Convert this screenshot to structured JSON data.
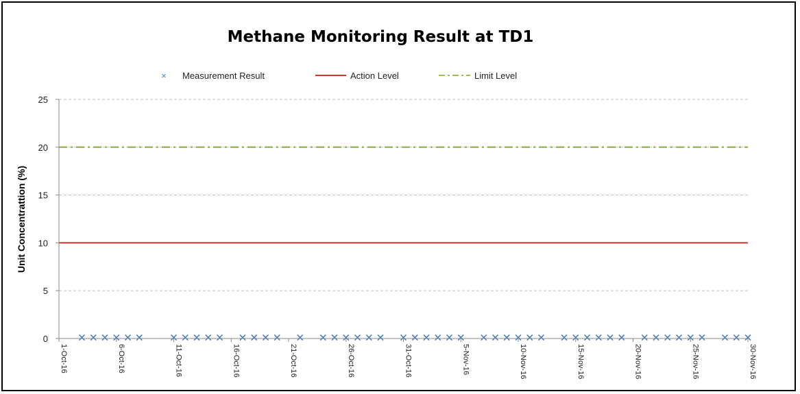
{
  "chart_data": {
    "type": "line",
    "title": "Methane Monitoring Result at TD1",
    "ylabel": "Unit Concentrattion (%)",
    "xlabel": "",
    "ylim": [
      0,
      25
    ],
    "yticks": [
      "0",
      "5",
      "10",
      "15",
      "20",
      "25"
    ],
    "x_range": [
      "1-Oct-16",
      "30-Nov-16"
    ],
    "x_tick_labels": [
      "1-Oct-16",
      "6-Oct-16",
      "11-Oct-16",
      "16-Oct-16",
      "21-Oct-16",
      "26-Oct-16",
      "31-Oct-16",
      "5-Nov-16",
      "10-Nov-16",
      "15-Nov-16",
      "20-Nov-16",
      "25-Nov-16",
      "30-Nov-16"
    ],
    "grid": "horizontal dashed",
    "legend_position": "top",
    "series": [
      {
        "name": "Measurement Result",
        "style": "markers",
        "color": "#4a7ebb",
        "x": [
          "3-Oct-16",
          "4-Oct-16",
          "5-Oct-16",
          "6-Oct-16",
          "7-Oct-16",
          "8-Oct-16",
          "11-Oct-16",
          "12-Oct-16",
          "13-Oct-16",
          "14-Oct-16",
          "15-Oct-16",
          "17-Oct-16",
          "18-Oct-16",
          "19-Oct-16",
          "20-Oct-16",
          "22-Oct-16",
          "24-Oct-16",
          "25-Oct-16",
          "26-Oct-16",
          "27-Oct-16",
          "28-Oct-16",
          "29-Oct-16",
          "31-Oct-16",
          "1-Nov-16",
          "2-Nov-16",
          "3-Nov-16",
          "4-Nov-16",
          "5-Nov-16",
          "7-Nov-16",
          "8-Nov-16",
          "9-Nov-16",
          "10-Nov-16",
          "11-Nov-16",
          "12-Nov-16",
          "14-Nov-16",
          "15-Nov-16",
          "16-Nov-16",
          "17-Nov-16",
          "18-Nov-16",
          "19-Nov-16",
          "21-Nov-16",
          "22-Nov-16",
          "23-Nov-16",
          "24-Nov-16",
          "25-Nov-16",
          "26-Nov-16",
          "28-Nov-16",
          "29-Nov-16",
          "30-Nov-16"
        ],
        "values": [
          0.1,
          0.1,
          0.1,
          0.1,
          0.1,
          0.1,
          0.1,
          0.1,
          0.1,
          0.1,
          0.1,
          0.1,
          0.1,
          0.1,
          0.1,
          0.1,
          0.1,
          0.1,
          0.1,
          0.1,
          0.1,
          0.1,
          0.1,
          0.1,
          0.1,
          0.1,
          0.1,
          0.1,
          0.1,
          0.1,
          0.1,
          0.1,
          0.1,
          0.1,
          0.1,
          0.1,
          0.1,
          0.1,
          0.1,
          0.1,
          0.1,
          0.1,
          0.1,
          0.1,
          0.1,
          0.1,
          0.1,
          0.1,
          0.1
        ]
      },
      {
        "name": "Action Level",
        "style": "solid line",
        "color": "#c0392b",
        "x": [
          "1-Oct-16",
          "30-Nov-16"
        ],
        "values": [
          10,
          10
        ]
      },
      {
        "name": "Limit Level",
        "style": "dash-dot line",
        "color": "#9bbb59",
        "x": [
          "1-Oct-16",
          "30-Nov-16"
        ],
        "values": [
          20,
          20
        ]
      }
    ]
  }
}
